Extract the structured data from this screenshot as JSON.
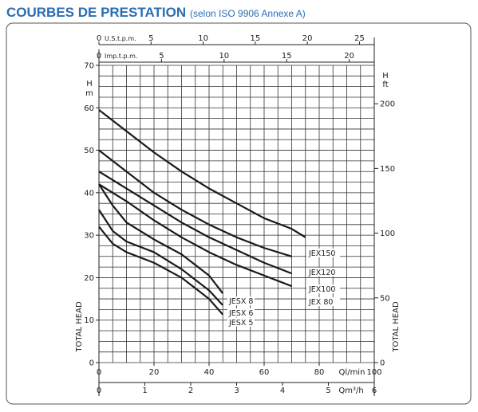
{
  "chart_data": {
    "type": "line",
    "title": "COURBES DE PRESTATION",
    "subtitle": "(selon ISO 9906 Annexe A)",
    "xlabel": "Ql/min",
    "xlim": [
      0,
      100
    ],
    "xticks": [
      0,
      20,
      40,
      60,
      80,
      100
    ],
    "ylabel": "TOTAL HEAD",
    "ylabel_symbol": "H",
    "ylabel_unit": "m",
    "ylim": [
      0,
      70
    ],
    "yticks": [
      0,
      10,
      20,
      30,
      40,
      50,
      60,
      70
    ],
    "y2label": "TOTAL HEAD",
    "y2label_symbol": "H",
    "y2label_unit": "ft",
    "y2lim": [
      0,
      229.66
    ],
    "y2ticks": [
      0,
      50,
      100,
      150,
      200
    ],
    "x2": {
      "label": "Qm³/h",
      "lim": [
        0,
        6
      ],
      "ticks": [
        0,
        1,
        2,
        3,
        4,
        5,
        6
      ]
    },
    "x_top": [
      {
        "label": "U.S.t.p.m.",
        "lim": [
          0,
          26.42
        ],
        "ticks": [
          0,
          5,
          10,
          15,
          20,
          25
        ]
      },
      {
        "label": "Imp.t.p.m.",
        "lim": [
          0,
          22.0
        ],
        "ticks": [
          0,
          5,
          10,
          15,
          20
        ]
      }
    ],
    "grid": true,
    "minor_grid": {
      "x": 5,
      "y": 2.5
    },
    "series": [
      {
        "name": "JEX150",
        "color": "#1a1a1a",
        "x": [
          0,
          10,
          20,
          30,
          40,
          50,
          60,
          70,
          75
        ],
        "values": [
          59.5,
          54.5,
          49.5,
          45,
          41,
          37.5,
          34,
          31.5,
          29.5
        ]
      },
      {
        "name": "JEX120",
        "color": "#1a1a1a",
        "x": [
          0,
          10,
          20,
          30,
          40,
          50,
          60,
          70
        ],
        "values": [
          50,
          45,
          40,
          36,
          32.5,
          29.5,
          27,
          25
        ]
      },
      {
        "name": "JEX100",
        "color": "#1a1a1a",
        "x": [
          0,
          10,
          20,
          30,
          40,
          50,
          60,
          70
        ],
        "values": [
          45,
          41,
          37,
          33,
          29.5,
          26.5,
          23.5,
          21
        ]
      },
      {
        "name": "JEX 80",
        "color": "#1a1a1a",
        "x": [
          0,
          10,
          20,
          30,
          40,
          50,
          60,
          70
        ],
        "values": [
          42,
          38,
          33.5,
          29.5,
          26,
          23,
          20.5,
          18
        ]
      },
      {
        "name": "JESX 8",
        "color": "#1a1a1a",
        "x": [
          0,
          5,
          10,
          20,
          30,
          40,
          45
        ],
        "values": [
          42,
          37,
          33,
          29,
          25.5,
          20.5,
          16.3
        ]
      },
      {
        "name": "JESX 6",
        "color": "#1a1a1a",
        "x": [
          0,
          5,
          10,
          20,
          30,
          40,
          45
        ],
        "values": [
          36,
          31,
          28.5,
          26,
          22,
          17,
          13.5
        ]
      },
      {
        "name": "JESX 5",
        "color": "#1a1a1a",
        "x": [
          0,
          5,
          10,
          20,
          30,
          40,
          45
        ],
        "values": [
          32,
          28,
          26,
          23.5,
          20,
          15,
          11.3
        ]
      }
    ]
  }
}
